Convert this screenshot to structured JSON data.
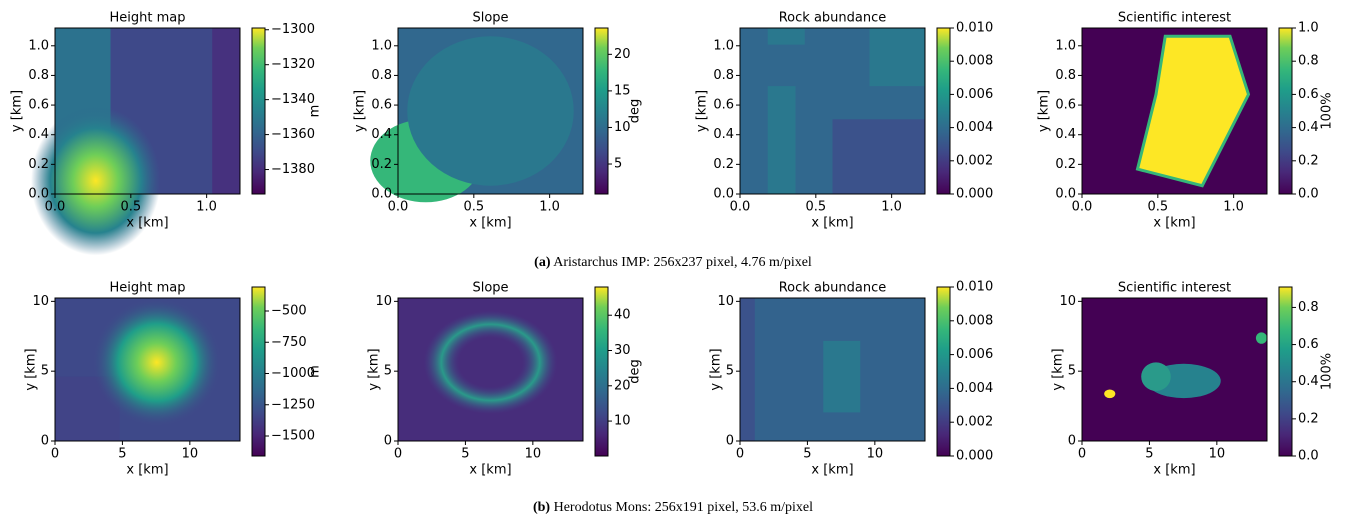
{
  "chart_data": [
    {
      "type": "heatmap",
      "title": "Height map",
      "xlabel": "x [km]",
      "ylabel": "y [km]",
      "xlim": [
        0,
        1.22
      ],
      "ylim": [
        0,
        1.12
      ],
      "xticks": [
        {
          "value": 0,
          "label": "0.0"
        },
        {
          "value": 0.5,
          "label": "0.5"
        },
        {
          "value": 1,
          "label": "1.0"
        }
      ],
      "yticks": [
        {
          "value": 0,
          "label": "0.0"
        },
        {
          "value": 0.2,
          "label": "0.2"
        },
        {
          "value": 0.4,
          "label": "0.4"
        },
        {
          "value": 0.6,
          "label": "0.6"
        },
        {
          "value": 0.8,
          "label": "0.8"
        },
        {
          "value": 1,
          "label": "1.0"
        }
      ],
      "colorbar": {
        "label": "m",
        "lim": [
          -1394,
          -1299
        ],
        "ticks": [
          {
            "value": -1300,
            "label": "−1300"
          },
          {
            "value": -1320,
            "label": "−1320"
          },
          {
            "value": -1340,
            "label": "−1340"
          },
          {
            "value": -1360,
            "label": "−1360"
          },
          {
            "value": -1380,
            "label": "−1380"
          }
        ]
      }
    },
    {
      "type": "heatmap",
      "title": "Slope",
      "xlabel": "x [km]",
      "ylabel": "y [km]",
      "xlim": [
        0,
        1.22
      ],
      "ylim": [
        0,
        1.12
      ],
      "xticks": [
        {
          "value": 0,
          "label": "0.0"
        },
        {
          "value": 0.5,
          "label": "0.5"
        },
        {
          "value": 1,
          "label": "1.0"
        }
      ],
      "yticks": [
        {
          "value": 0,
          "label": "0.0"
        },
        {
          "value": 0.2,
          "label": "0.2"
        },
        {
          "value": 0.4,
          "label": "0.4"
        },
        {
          "value": 0.6,
          "label": "0.6"
        },
        {
          "value": 0.8,
          "label": "0.8"
        },
        {
          "value": 1,
          "label": "1.0"
        }
      ],
      "colorbar": {
        "label": "deg",
        "lim": [
          0.9,
          23.6
        ],
        "ticks": [
          5,
          10,
          15,
          20
        ]
      }
    },
    {
      "type": "heatmap",
      "title": "Rock abundance",
      "xlabel": "x [km]",
      "ylabel": "y [km]",
      "xlim": [
        0,
        1.22
      ],
      "ylim": [
        0,
        1.12
      ],
      "xticks": [
        {
          "value": 0,
          "label": "0.0"
        },
        {
          "value": 0.5,
          "label": "0.5"
        },
        {
          "value": 1,
          "label": "1.0"
        }
      ],
      "yticks": [
        {
          "value": 0,
          "label": "0.0"
        },
        {
          "value": 0.2,
          "label": "0.2"
        },
        {
          "value": 0.4,
          "label": "0.4"
        },
        {
          "value": 0.6,
          "label": "0.6"
        },
        {
          "value": 0.8,
          "label": "0.8"
        },
        {
          "value": 1,
          "label": "1.0"
        }
      ],
      "colorbar": {
        "lim": [
          0,
          0.01
        ],
        "ticks": [
          {
            "value": 0,
            "label": "0.000"
          },
          {
            "value": 0.002,
            "label": "0.002"
          },
          {
            "value": 0.004,
            "label": "0.004"
          },
          {
            "value": 0.006,
            "label": "0.006"
          },
          {
            "value": 0.008,
            "label": "0.008"
          },
          {
            "value": 0.01,
            "label": "0.010"
          }
        ]
      }
    },
    {
      "type": "heatmap",
      "title": "Scientific interest",
      "xlabel": "x [km]",
      "ylabel": "y [km]",
      "xlim": [
        0,
        1.22
      ],
      "ylim": [
        0,
        1.12
      ],
      "xticks": [
        {
          "value": 0,
          "label": "0.0"
        },
        {
          "value": 0.5,
          "label": "0.5"
        },
        {
          "value": 1,
          "label": "1.0"
        }
      ],
      "yticks": [
        {
          "value": 0,
          "label": "0.0"
        },
        {
          "value": 0.2,
          "label": "0.2"
        },
        {
          "value": 0.4,
          "label": "0.4"
        },
        {
          "value": 0.6,
          "label": "0.6"
        },
        {
          "value": 0.8,
          "label": "0.8"
        },
        {
          "value": 1,
          "label": "1.0"
        }
      ],
      "colorbar": {
        "label": "100%",
        "lim": [
          0,
          1
        ],
        "ticks": [
          {
            "value": 0,
            "label": "0.0"
          },
          {
            "value": 0.2,
            "label": "0.2"
          },
          {
            "value": 0.4,
            "label": "0.4"
          },
          {
            "value": 0.6,
            "label": "0.6"
          },
          {
            "value": 0.8,
            "label": "0.8"
          },
          {
            "value": 1,
            "label": "1.0"
          }
        ]
      }
    },
    {
      "type": "heatmap",
      "title": "Height map",
      "xlabel": "x [km]",
      "ylabel": "y [km]",
      "xlim": [
        0,
        13.72
      ],
      "ylim": [
        0,
        10.24
      ],
      "xticks": [
        0,
        5,
        10
      ],
      "yticks": [
        0,
        5,
        10
      ],
      "colorbar": {
        "label": "m",
        "lim": [
          -1660,
          -308
        ],
        "ticks": [
          {
            "value": -500,
            "label": "−500"
          },
          {
            "value": -750,
            "label": "−750"
          },
          {
            "value": -1000,
            "label": "−1000"
          },
          {
            "value": -1250,
            "label": "−1250"
          },
          {
            "value": -1500,
            "label": "−1500"
          }
        ]
      }
    },
    {
      "type": "heatmap",
      "title": "Slope",
      "xlabel": "x [km]",
      "ylabel": "y [km]",
      "xlim": [
        0,
        13.72
      ],
      "ylim": [
        0,
        10.24
      ],
      "xticks": [
        0,
        5,
        10
      ],
      "yticks": [
        0,
        5,
        10
      ],
      "colorbar": {
        "label": "deg",
        "lim": [
          0.1,
          48
        ],
        "ticks": [
          10,
          20,
          30,
          40
        ]
      }
    },
    {
      "type": "heatmap",
      "title": "Rock abundance",
      "xlabel": "x [km]",
      "ylabel": "y [km]",
      "xlim": [
        0,
        13.72
      ],
      "ylim": [
        0,
        10.24
      ],
      "xticks": [
        0,
        5,
        10
      ],
      "yticks": [
        0,
        5,
        10
      ],
      "colorbar": {
        "lim": [
          0,
          0.01
        ],
        "ticks": [
          {
            "value": 0,
            "label": "0.000"
          },
          {
            "value": 0.002,
            "label": "0.002"
          },
          {
            "value": 0.004,
            "label": "0.004"
          },
          {
            "value": 0.006,
            "label": "0.006"
          },
          {
            "value": 0.008,
            "label": "0.008"
          },
          {
            "value": 0.01,
            "label": "0.010"
          }
        ]
      }
    },
    {
      "type": "heatmap",
      "title": "Scientific interest",
      "xlabel": "x [km]",
      "ylabel": "y [km]",
      "xlim": [
        0,
        13.72
      ],
      "ylim": [
        0,
        10.24
      ],
      "xticks": [
        0,
        5,
        10
      ],
      "yticks": [
        0,
        5,
        10
      ],
      "colorbar": {
        "label": "100%",
        "lim": [
          0,
          0.91
        ],
        "ticks": [
          {
            "value": 0,
            "label": "0.0"
          },
          {
            "value": 0.2,
            "label": "0.2"
          },
          {
            "value": 0.4,
            "label": "0.4"
          },
          {
            "value": 0.6,
            "label": "0.6"
          },
          {
            "value": 0.8,
            "label": "0.8"
          }
        ]
      }
    }
  ],
  "captions": [
    {
      "label": "(a)",
      "text": "Aristarchus IMP: 256x237 pixel, 4.76 m/pixel"
    },
    {
      "label": "(b)",
      "text": "Herodotus Mons: 256x191 pixel, 53.6 m/pixel"
    }
  ]
}
